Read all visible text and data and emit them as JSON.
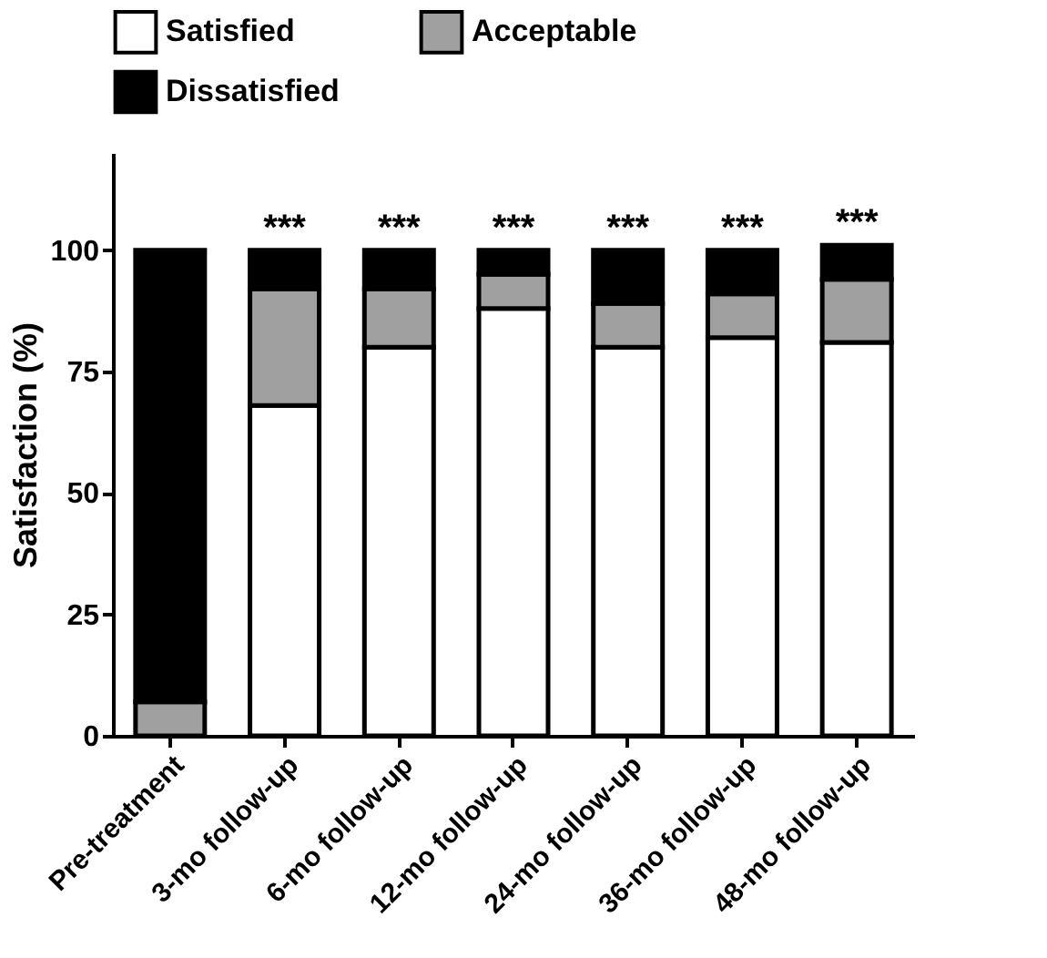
{
  "chart_data": {
    "type": "bar",
    "stacked": true,
    "ylabel": "Satisfaction (%)",
    "categories": [
      "Pre-treatment",
      "3-mo follow-up",
      "6-mo follow-up",
      "12-mo follow-up",
      "24-mo follow-up",
      "36-mo follow-up",
      "48-mo follow-up"
    ],
    "series": [
      {
        "name": "Satisfied",
        "color": "#ffffff",
        "values": [
          0,
          68,
          80,
          88,
          80,
          82,
          81
        ]
      },
      {
        "name": "Acceptable",
        "color": "#a0a0a0",
        "values": [
          7,
          24,
          12,
          7,
          9,
          9,
          13
        ]
      },
      {
        "name": "Dissatisfied",
        "color": "#000000",
        "values": [
          93,
          8,
          8,
          5,
          11,
          9,
          7
        ]
      }
    ],
    "ylim": [
      0,
      120
    ],
    "yticks": [
      0,
      25,
      50,
      75,
      100
    ],
    "grid": false,
    "legend": "top",
    "annotations": [
      {
        "text": "***",
        "x": "3-mo follow-up",
        "y": 100
      },
      {
        "text": "***",
        "x": "6-mo follow-up",
        "y": 100
      },
      {
        "text": "***",
        "x": "12-mo follow-up",
        "y": 100
      },
      {
        "text": "***",
        "x": "24-mo follow-up",
        "y": 100
      },
      {
        "text": "***",
        "x": "36-mo follow-up",
        "y": 100
      },
      {
        "text": "***",
        "x": "48-mo follow-up",
        "y": 101
      }
    ]
  }
}
